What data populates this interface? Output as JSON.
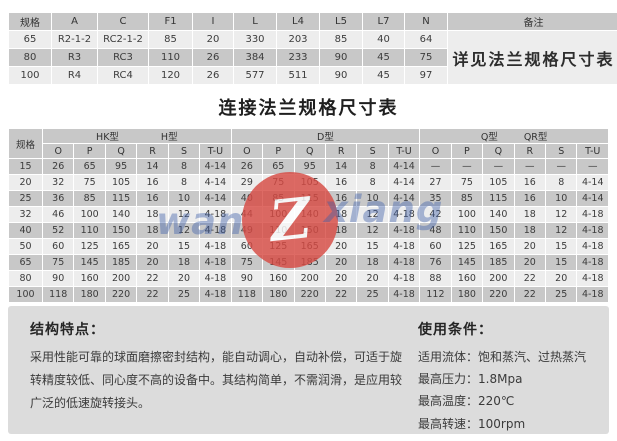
{
  "main_title": "连接法兰规格尺寸表",
  "top_table": {
    "headers": [
      "规格",
      "A",
      "C",
      "F1",
      "I",
      "L",
      "L4",
      "L5",
      "L7",
      "N",
      "备注"
    ],
    "rows": [
      [
        "65",
        "R2-1-2",
        "RC2-1-2",
        "85",
        "20",
        "330",
        "203",
        "85",
        "40",
        "64"
      ],
      [
        "80",
        "R3",
        "RC3",
        "110",
        "26",
        "384",
        "233",
        "90",
        "45",
        "75"
      ],
      [
        "100",
        "R4",
        "RC4",
        "120",
        "26",
        "577",
        "511",
        "90",
        "45",
        "97"
      ]
    ],
    "remark": "详见法兰规格尺寸表"
  },
  "flange_table": {
    "spec_header": "规格",
    "group_labels": [
      [
        "HK型",
        "H型"
      ],
      [
        "D型"
      ],
      [
        "Q型",
        "QR型"
      ]
    ],
    "sub_headers": [
      "O",
      "P",
      "Q",
      "R",
      "S",
      "T-U"
    ],
    "rows": [
      {
        "spec": "15",
        "cells": [
          "26",
          "65",
          "95",
          "14",
          "8",
          "4-14",
          "26",
          "65",
          "95",
          "14",
          "8",
          "4-14",
          "—",
          "—",
          "—",
          "—",
          "—",
          "—"
        ]
      },
      {
        "spec": "20",
        "cells": [
          "32",
          "75",
          "105",
          "16",
          "8",
          "4-14",
          "29",
          "75",
          "105",
          "16",
          "8",
          "4-14",
          "27",
          "75",
          "105",
          "16",
          "8",
          "4-14"
        ]
      },
      {
        "spec": "25",
        "cells": [
          "36",
          "85",
          "115",
          "16",
          "10",
          "4-14",
          "40",
          "85",
          "115",
          "16",
          "10",
          "4-14",
          "35",
          "85",
          "115",
          "16",
          "10",
          "4-14"
        ]
      },
      {
        "spec": "32",
        "cells": [
          "46",
          "100",
          "140",
          "18",
          "12",
          "4-18",
          "44",
          "100",
          "140",
          "18",
          "12",
          "4-18",
          "42",
          "100",
          "140",
          "18",
          "12",
          "4-18"
        ]
      },
      {
        "spec": "40",
        "cells": [
          "52",
          "110",
          "150",
          "18",
          "12",
          "4-18",
          "49",
          "110",
          "150",
          "18",
          "12",
          "4-18",
          "48",
          "110",
          "150",
          "18",
          "12",
          "4-18"
        ]
      },
      {
        "spec": "50",
        "cells": [
          "60",
          "125",
          "165",
          "20",
          "15",
          "4-18",
          "60",
          "125",
          "165",
          "20",
          "15",
          "4-18",
          "60",
          "125",
          "165",
          "20",
          "15",
          "4-18"
        ]
      },
      {
        "spec": "65",
        "cells": [
          "75",
          "145",
          "185",
          "20",
          "18",
          "4-18",
          "75",
          "145",
          "185",
          "20",
          "18",
          "4-18",
          "76",
          "145",
          "185",
          "20",
          "15",
          "4-18"
        ]
      },
      {
        "spec": "80",
        "cells": [
          "90",
          "160",
          "200",
          "22",
          "20",
          "4-18",
          "90",
          "160",
          "200",
          "20",
          "20",
          "4-18",
          "88",
          "160",
          "200",
          "22",
          "20",
          "4-18"
        ]
      },
      {
        "spec": "100",
        "cells": [
          "118",
          "180",
          "220",
          "22",
          "25",
          "4-18",
          "118",
          "180",
          "220",
          "22",
          "25",
          "4-18",
          "112",
          "180",
          "220",
          "22",
          "25",
          "4-18"
        ]
      }
    ]
  },
  "features": {
    "title": "结构特点：",
    "body": "采用性能可靠的球面磨擦密封结构，能自动调心，自动补偿，可适于旋转精度较低、同心度不高的设备中。其结构简单，不需润滑，是应用较广泛的低速旋转接头。"
  },
  "conditions": {
    "title": "使用条件：",
    "items": [
      {
        "label": "适用流体：",
        "value": "饱和蒸汽、过热蒸汽"
      },
      {
        "label": "最高压力：",
        "value": "1.8Mpa"
      },
      {
        "label": "最高温度：",
        "value": "220℃"
      },
      {
        "label": "最高转速：",
        "value": "100rpm"
      }
    ]
  },
  "watermark": {
    "left_text": "wan",
    "circle_letter": "Z",
    "right_text": "xiang",
    "circle_color": "#d74b44",
    "text_color": "#3e60aa"
  },
  "colors": {
    "row_dark": "#c8c8c8",
    "row_light": "#ededed",
    "panel": "#dcdcdc"
  }
}
